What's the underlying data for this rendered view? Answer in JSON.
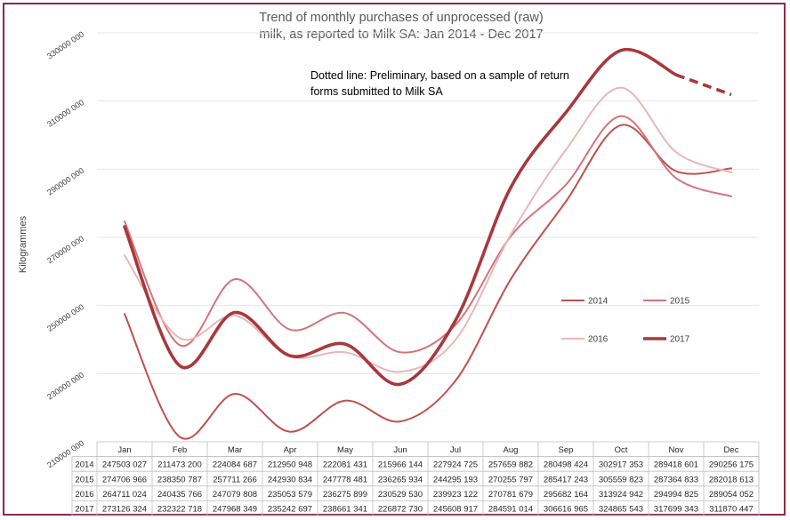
{
  "chart_data": {
    "type": "line",
    "title_lines": [
      "Trend of monthly purchases of unprocessed (raw)",
      "milk, as reported to Milk SA: Jan 2014 - Dec 2017"
    ],
    "annotation_lines": [
      "Dotted line: Preliminary, based on a sample of return",
      "forms submitted to Milk SA"
    ],
    "ylabel": "Kilogrammes",
    "ylim": [
      210000000,
      340000000
    ],
    "yticks": [
      210000000,
      230000000,
      250000000,
      270000000,
      290000000,
      310000000,
      330000000
    ],
    "ytick_labels": [
      "210000 000",
      "230000 000",
      "250000 000",
      "270000 000",
      "290000 000",
      "310000 000",
      "330000 000"
    ],
    "categories": [
      "Jan",
      "Feb",
      "Mar",
      "Apr",
      "May",
      "Jun",
      "Jul",
      "Aug",
      "Sep",
      "Oct",
      "Nov",
      "Dec"
    ],
    "grid": true,
    "legend_placement": "center-right",
    "series": [
      {
        "name": "2014",
        "color": "#c0504d",
        "values": [
          247503027,
          211473200,
          224084687,
          212950948,
          222081431,
          215966144,
          227924725,
          257659882,
          280498424,
          302917353,
          289418601,
          290256175
        ],
        "labels": [
          "247503 027",
          "211473 200",
          "224084 687",
          "212950 948",
          "222081 431",
          "215966 144",
          "227924 725",
          "257659 882",
          "280498 424",
          "302917 353",
          "289418 601",
          "290256 175"
        ]
      },
      {
        "name": "2015",
        "color": "#d4737a",
        "values": [
          274706966,
          238350787,
          257711266,
          242930834,
          247778481,
          236265934,
          244295193,
          270255797,
          285417243,
          305559823,
          287364833,
          282018613
        ],
        "labels": [
          "274706 966",
          "238350 787",
          "257711 266",
          "242930 834",
          "247778 481",
          "236265 934",
          "244295 193",
          "270255 797",
          "285417 243",
          "305559 823",
          "287364 833",
          "282018 613"
        ]
      },
      {
        "name": "2016",
        "color": "#e8b7b9",
        "values": [
          264711024,
          240435766,
          247079808,
          235053579,
          236275899,
          230529530,
          239923122,
          270781679,
          295682164,
          313924942,
          294994825,
          289054052
        ],
        "labels": [
          "264711 024",
          "240435 766",
          "247079 808",
          "235053 579",
          "236275 899",
          "230529 530",
          "239923 122",
          "270781 679",
          "295682 164",
          "313924 942",
          "294994 825",
          "289054 052"
        ]
      },
      {
        "name": "2017",
        "color": "#a8383d",
        "values": [
          273126324,
          232322718,
          247968349,
          235242697,
          238661341,
          226872730,
          245608917,
          284591014,
          306616965,
          324865543,
          317699343,
          311870447
        ],
        "labels": [
          "273126 324",
          "232322 718",
          "247968 349",
          "235242 697",
          "238661 341",
          "226872 730",
          "245608 917",
          "284591 014",
          "306616 965",
          "324865 543",
          "317699 343",
          "311870 447"
        ],
        "preliminary_from": "Nov"
      }
    ]
  }
}
